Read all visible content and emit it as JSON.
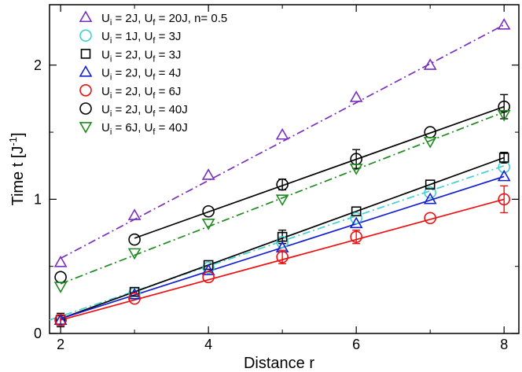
{
  "chart_data": {
    "type": "scatter",
    "xlabel": "Distance r",
    "ylabel": {
      "main": "Time t [J",
      "sup": "-1",
      "end": "]"
    },
    "xlim": [
      1.85,
      8.2
    ],
    "ylim": [
      0,
      2.45
    ],
    "xticks": [
      2,
      4,
      6,
      8
    ],
    "yticks": [
      0,
      1,
      2
    ],
    "grid": false,
    "legend_position": "top-left",
    "series": [
      {
        "legend": {
          "u": "U",
          "i": "i",
          "a": " = 2J, U",
          "f": "f",
          "b": " = 20J, n= 0.5"
        },
        "color": "#7b2fbe",
        "marker": "triangle-up",
        "line_style": "dash-dot",
        "x": [
          2,
          3,
          4,
          5,
          6,
          7,
          8
        ],
        "y": [
          0.53,
          0.88,
          1.18,
          1.48,
          1.76,
          2.0,
          2.3
        ],
        "fit": {
          "x": [
            2,
            8
          ],
          "y": [
            0.56,
            2.3
          ]
        }
      },
      {
        "legend": {
          "u": "U",
          "i": "i",
          "a": " = 1J, U",
          "f": "f",
          "b": " = 3J"
        },
        "color": "#40d0d0",
        "marker": "circle",
        "line_style": "dash-dot",
        "x": [
          2,
          3,
          4,
          5,
          6,
          7,
          8
        ],
        "y": [
          0.1,
          0.3,
          0.49,
          0.68,
          0.86,
          1.05,
          1.24
        ],
        "fit": {
          "x": [
            1.85,
            8
          ],
          "y": [
            0.1,
            1.25
          ]
        }
      },
      {
        "legend": {
          "u": "U",
          "i": "i",
          "a": " = 2J, U",
          "f": "f",
          "b": " = 3J"
        },
        "color": "#000000",
        "marker": "square",
        "x": [
          2,
          3,
          4,
          5,
          6,
          7,
          8
        ],
        "y": [
          0.1,
          0.31,
          0.51,
          0.72,
          0.91,
          1.11,
          1.31
        ],
        "err": [
          0.05,
          0.0,
          0.0,
          0.05,
          0.0,
          0.0,
          0.04
        ],
        "fit": {
          "x": [
            2,
            8
          ],
          "y": [
            0.11,
            1.31
          ]
        }
      },
      {
        "legend": {
          "u": "U",
          "i": "i",
          "a": " = 2J, U",
          "f": "f",
          "b": " = 4J"
        },
        "color": "#1520d0",
        "marker": "triangle-up",
        "x": [
          2,
          3,
          4,
          5,
          6,
          7,
          8
        ],
        "y": [
          0.1,
          0.29,
          0.47,
          0.64,
          0.82,
          1.0,
          1.17
        ],
        "fit": {
          "x": [
            2,
            8
          ],
          "y": [
            0.11,
            1.17
          ]
        }
      },
      {
        "legend": {
          "u": "U",
          "i": "i",
          "a": " = 2J, U",
          "f": "f",
          "b": " = 6J"
        },
        "color": "#ee1010",
        "marker": "circle",
        "x": [
          2,
          3,
          4,
          5,
          6,
          7,
          8
        ],
        "y": [
          0.1,
          0.26,
          0.42,
          0.57,
          0.72,
          0.86,
          1.0
        ],
        "err": [
          0.04,
          0.0,
          0.0,
          0.05,
          0.05,
          0.0,
          0.1
        ],
        "fit": {
          "x": [
            2,
            8
          ],
          "y": [
            0.1,
            1.0
          ]
        }
      },
      {
        "legend": {
          "u": "U",
          "i": "i",
          "a": " = 2J, U",
          "f": "f",
          "b": " = 40J"
        },
        "color": "#000000",
        "marker": "circle",
        "x": [
          2,
          3,
          4,
          5,
          6,
          7,
          8
        ],
        "y": [
          0.42,
          0.7,
          0.91,
          1.11,
          1.3,
          1.5,
          1.69
        ],
        "err": [
          0.0,
          0.0,
          0.0,
          0.04,
          0.07,
          0.0,
          0.09
        ],
        "fit": {
          "x": [
            3,
            8
          ],
          "y": [
            0.71,
            1.69
          ]
        }
      },
      {
        "legend": {
          "u": "U",
          "i": "i",
          "a": " = 6J, U",
          "f": "f",
          "b": " = 40J"
        },
        "color": "#1f8a1f",
        "marker": "triangle-down",
        "line_style": "dash-dot",
        "x": [
          2,
          3,
          4,
          5,
          6,
          7,
          8
        ],
        "y": [
          0.35,
          0.6,
          0.82,
          1.0,
          1.23,
          1.43,
          1.63
        ],
        "fit": {
          "x": [
            2,
            8
          ],
          "y": [
            0.37,
            1.65
          ]
        }
      }
    ]
  }
}
